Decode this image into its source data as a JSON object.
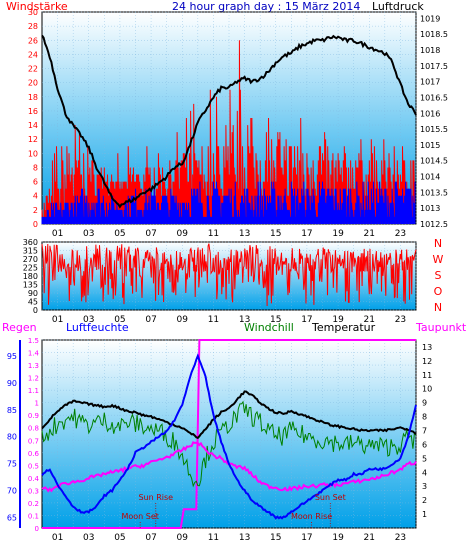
{
  "header": {
    "left_label": "Windstärke",
    "title": "24 hour graph day : 15 März 2014",
    "right_label": "Luftdruck"
  },
  "middle": {
    "compass": [
      "N",
      "W",
      "S",
      "O",
      "N"
    ]
  },
  "bottom_header": {
    "regen": "Regen",
    "luftfeuchte": "Luftfeuchte",
    "windchill": "Windchill",
    "temperatur": "Temperatur",
    "taupunkt": "Taupunkt"
  },
  "colors": {
    "wind": "#ff0000",
    "wind_gust": "#0000ff",
    "pressure": "#000000",
    "humidity": "#0000ff",
    "windchill": "#008000",
    "temperature": "#000000",
    "dewpoint": "#ff00ff",
    "rain": "#ff00ff",
    "axis_left": "#ff0000",
    "axis_bottom_left": "#0000ff",
    "bg_top": "#ffffff",
    "bg_bottom": "#00a0e8"
  },
  "chart_data": [
    {
      "type": "line",
      "name": "wind-pressure",
      "x_ticks": [
        "01",
        "03",
        "05",
        "07",
        "09",
        "11",
        "13",
        "15",
        "17",
        "19",
        "21",
        "23"
      ],
      "y_left_ticks": [
        0,
        2,
        4,
        6,
        8,
        10,
        12,
        14,
        16,
        18,
        20,
        22,
        24,
        26,
        28,
        30
      ],
      "y_left_lim": [
        0,
        30
      ],
      "y_right_ticks": [
        "1012.5",
        "1013",
        "1013.5",
        "1014",
        "1014.5",
        "1015",
        "1015.5",
        "1016",
        "1016.5",
        "1017",
        "1017.5",
        "1018",
        "1018.5",
        "1019"
      ],
      "y_right_lim": [
        1012.5,
        1019.2
      ],
      "pressure": {
        "x": [
          0,
          0.5,
          1,
          1.5,
          2,
          2.5,
          3,
          3.5,
          4,
          4.5,
          5,
          5.5,
          6,
          6.5,
          7,
          7.5,
          8,
          8.5,
          9,
          9.5,
          10,
          10.5,
          11,
          11.5,
          12,
          12.5,
          13,
          13.5,
          14,
          14.5,
          15,
          15.5,
          16,
          16.5,
          17,
          17.5,
          18,
          18.5,
          19,
          19.5,
          20,
          20.5,
          21,
          21.5,
          22,
          22.5,
          23,
          23.5,
          24
        ],
        "y": [
          1018.5,
          1017.8,
          1016.8,
          1016.0,
          1015.6,
          1015.3,
          1014.9,
          1014.3,
          1013.8,
          1013.3,
          1013.1,
          1013.2,
          1013.3,
          1013.5,
          1013.6,
          1013.8,
          1014.0,
          1014.3,
          1014.4,
          1015.0,
          1015.7,
          1016.1,
          1016.5,
          1016.8,
          1016.8,
          1017.0,
          1017.1,
          1017.0,
          1017.1,
          1017.3,
          1017.6,
          1017.8,
          1017.9,
          1018.1,
          1018.2,
          1018.3,
          1018.3,
          1018.4,
          1018.4,
          1018.3,
          1018.3,
          1018.2,
          1018.1,
          1018.0,
          1017.9,
          1017.6,
          1016.9,
          1016.3,
          1016.0
        ]
      },
      "wind_band": {
        "x": [
          0,
          1,
          2,
          3,
          4,
          5,
          6,
          7,
          8,
          9,
          10,
          11,
          12,
          13,
          14,
          15,
          16,
          17,
          18,
          19,
          20,
          21,
          22,
          23,
          24
        ],
        "base": [
          1,
          2,
          2,
          4,
          4,
          4,
          4,
          4,
          4,
          4,
          4,
          4,
          4,
          4,
          4,
          4,
          4,
          4,
          4,
          4,
          4,
          4,
          4,
          4,
          4
        ],
        "low": [
          2,
          3,
          5,
          6,
          6,
          6,
          6,
          6,
          6,
          6,
          6,
          6,
          6,
          6,
          6,
          6,
          6,
          6,
          6,
          6,
          6,
          6,
          6,
          6,
          6
        ],
        "high": [
          4,
          8,
          12,
          10,
          8,
          6,
          8,
          8,
          8,
          10,
          12,
          12,
          14,
          16,
          14,
          14,
          12,
          12,
          12,
          10,
          10,
          10,
          10,
          10,
          10
        ],
        "peak": [
          6,
          12,
          16,
          14,
          12,
          10,
          12,
          12,
          12,
          14,
          20,
          22,
          24,
          30,
          22,
          20,
          20,
          16,
          16,
          14,
          14,
          12,
          12,
          12,
          12
        ]
      },
      "gust_band": {
        "x": [
          0,
          1,
          2,
          3,
          4,
          5,
          6,
          7,
          8,
          9,
          10,
          11,
          12,
          13,
          14,
          15,
          16,
          17,
          18,
          19,
          20,
          21,
          22,
          23,
          24
        ],
        "low": [
          0,
          1,
          1,
          1,
          1,
          1,
          1,
          1,
          1,
          1,
          1,
          1,
          1,
          1,
          1,
          1,
          1,
          1,
          1,
          1,
          1,
          1,
          1,
          1,
          1
        ],
        "high": [
          2,
          3,
          4,
          6,
          5,
          4,
          5,
          5,
          5,
          5,
          6,
          6,
          6,
          6,
          6,
          6,
          6,
          6,
          6,
          6,
          6,
          6,
          6,
          6,
          6
        ]
      }
    },
    {
      "type": "line",
      "name": "wind-direction",
      "x_ticks": [
        "01",
        "03",
        "05",
        "07",
        "09",
        "11",
        "13",
        "15",
        "17",
        "19",
        "21",
        "23"
      ],
      "y_ticks": [
        0,
        45,
        90,
        135,
        180,
        225,
        270,
        315,
        360
      ],
      "y_lim": [
        0,
        360
      ],
      "band": {
        "x": [
          0,
          2,
          4,
          6,
          8,
          10,
          12,
          14,
          16,
          18,
          20,
          22,
          24
        ],
        "low": [
          0,
          40,
          20,
          30,
          40,
          40,
          30,
          20,
          20,
          30,
          40,
          30,
          20
        ],
        "high": [
          360,
          330,
          360,
          340,
          330,
          360,
          340,
          350,
          330,
          340,
          320,
          340,
          330
        ]
      }
    },
    {
      "type": "line",
      "name": "weather",
      "x_ticks": [
        "01",
        "03",
        "05",
        "07",
        "09",
        "11",
        "13",
        "15",
        "17",
        "19",
        "21",
        "23"
      ],
      "y_left_ticks": [
        65,
        70,
        75,
        80,
        85,
        90,
        95
      ],
      "y_left_lim": [
        63,
        98
      ],
      "y_rain_ticks": [
        "0",
        "0.1",
        "0.2",
        "0.3",
        "0.4",
        "0.5",
        "0.6",
        "0.7",
        "0.8",
        "0.9",
        "1",
        "1.1",
        "1.2",
        "1.3",
        "1.4",
        "1.5"
      ],
      "y_rain_lim": [
        0,
        1.5
      ],
      "y_right_ticks": [
        1,
        2,
        3,
        4,
        5,
        6,
        7,
        8,
        9,
        10,
        11,
        12,
        13
      ],
      "y_right_lim": [
        0,
        13.5
      ],
      "annotations": {
        "sun_rise": "Sun Rise",
        "moon_set": "Moon Set",
        "sun_set": "Sun Set",
        "moon_rise": "Moon Rise"
      },
      "humidity": {
        "x": [
          0,
          0.5,
          1,
          1.5,
          2,
          2.5,
          3,
          3.5,
          4,
          4.5,
          5,
          5.5,
          6,
          6.5,
          7,
          7.5,
          8,
          8.5,
          9,
          9.5,
          10,
          10.5,
          11,
          11.5,
          12,
          12.5,
          13,
          13.5,
          14,
          14.5,
          15,
          15.5,
          16,
          16.5,
          17,
          17.5,
          18,
          18.5,
          19,
          19.5,
          20,
          20.5,
          21,
          21.5,
          22,
          22.5,
          23,
          23.5,
          24
        ],
        "y": [
          73,
          74,
          71,
          69,
          67,
          66,
          66,
          67,
          69,
          70,
          72,
          74,
          77,
          78,
          79,
          80,
          81,
          83,
          86,
          91,
          95,
          91,
          84,
          79,
          75,
          72,
          70,
          68,
          67,
          66,
          65,
          65,
          66,
          67,
          68,
          69,
          70,
          71,
          72,
          72,
          73,
          73,
          74,
          74,
          74,
          75,
          76,
          80,
          86
        ]
      },
      "windchill": {
        "x": [
          0,
          0.5,
          1,
          1.5,
          2,
          2.5,
          3,
          3.5,
          4,
          4.5,
          5,
          5.5,
          6,
          6.5,
          7,
          7.5,
          8,
          8.5,
          9,
          9.5,
          10,
          10.5,
          11,
          11.5,
          12,
          12.5,
          13,
          13.5,
          14,
          14.5,
          15,
          15.5,
          16,
          16.5,
          17,
          17.5,
          18,
          18.5,
          19,
          19.5,
          20,
          20.5,
          21,
          21.5,
          22,
          22.5,
          23,
          23.5,
          24
        ],
        "y": [
          6.5,
          7,
          7.5,
          7.8,
          8,
          7.6,
          7.4,
          7.6,
          7.7,
          7.5,
          7.3,
          7.6,
          7.5,
          7.3,
          7.1,
          7.0,
          6.6,
          6.2,
          5.2,
          4.0,
          3.3,
          5.0,
          6.2,
          6.8,
          7.5,
          8.0,
          8.6,
          8.0,
          7.6,
          7.0,
          6.6,
          6.6,
          7.0,
          6.8,
          6.6,
          6.4,
          6.3,
          6.2,
          6.1,
          6.0,
          6.1,
          6.0,
          5.9,
          5.9,
          5.8,
          5.9,
          6.0,
          6.5,
          6.2
        ]
      },
      "temperature": {
        "x": [
          0,
          0.5,
          1,
          1.5,
          2,
          2.5,
          3,
          3.5,
          4,
          4.5,
          5,
          5.5,
          6,
          6.5,
          7,
          7.5,
          8,
          8.5,
          9,
          9.5,
          10,
          10.5,
          11,
          11.5,
          12,
          12.5,
          13,
          13.5,
          14,
          14.5,
          15,
          15.5,
          16,
          16.5,
          17,
          17.5,
          18,
          18.5,
          19,
          19.5,
          20,
          20.5,
          21,
          21.5,
          22,
          22.5,
          23,
          23.5,
          24
        ],
        "y": [
          7.2,
          7.8,
          8.4,
          8.8,
          9.1,
          9.0,
          8.9,
          8.8,
          8.7,
          8.8,
          8.6,
          8.4,
          8.3,
          8.1,
          8.0,
          7.8,
          7.6,
          7.4,
          7.2,
          6.8,
          6.5,
          7.1,
          7.8,
          8.3,
          8.6,
          9.2,
          9.8,
          9.5,
          9.0,
          8.6,
          8.3,
          8.2,
          8.4,
          8.2,
          8.0,
          7.8,
          7.6,
          7.4,
          7.3,
          7.2,
          7.1,
          7.0,
          7.0,
          7.0,
          7.0,
          7.1,
          7.2,
          7.1,
          6.8
        ]
      },
      "dewpoint": {
        "x": [
          0,
          0.5,
          1,
          1.5,
          2,
          2.5,
          3,
          3.5,
          4,
          4.5,
          5,
          5.5,
          6,
          6.5,
          7,
          7.5,
          8,
          8.5,
          9,
          9.5,
          10,
          10.5,
          11,
          11.5,
          12,
          12.5,
          13,
          13.5,
          14,
          14.5,
          15,
          15.5,
          16,
          16.5,
          17,
          17.5,
          18,
          18.5,
          19,
          19.5,
          20,
          20.5,
          21,
          21.5,
          22,
          22.5,
          23,
          23.5,
          24
        ],
        "y": [
          2.9,
          2.7,
          3.0,
          3.2,
          3.3,
          3.4,
          3.6,
          3.7,
          3.9,
          4.0,
          4.1,
          4.3,
          4.4,
          4.5,
          4.7,
          4.9,
          5.1,
          5.3,
          5.6,
          5.9,
          6.2,
          5.6,
          5.2,
          5.0,
          4.6,
          4.4,
          4.3,
          3.8,
          3.3,
          3.0,
          2.9,
          2.8,
          2.8,
          2.9,
          3.0,
          3.0,
          3.1,
          3.1,
          3.1,
          3.2,
          3.3,
          3.4,
          3.5,
          3.6,
          3.8,
          4.0,
          4.2,
          4.6,
          4.7
        ]
      },
      "rain": {
        "x": [
          0,
          8.9,
          9.1,
          9.9,
          10.1,
          24
        ],
        "y": [
          0,
          0,
          0.15,
          0.15,
          1.5,
          1.5
        ]
      }
    }
  ]
}
